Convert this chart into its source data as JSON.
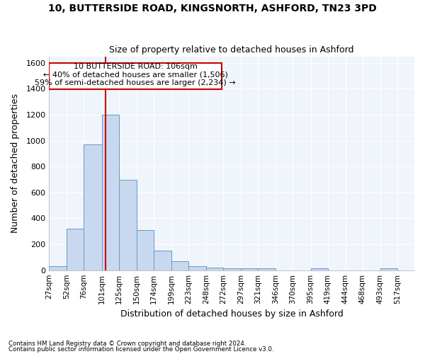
{
  "title1": "10, BUTTERSIDE ROAD, KINGSNORTH, ASHFORD, TN23 3PD",
  "title2": "Size of property relative to detached houses in Ashford",
  "xlabel": "Distribution of detached houses by size in Ashford",
  "ylabel": "Number of detached properties",
  "footnote1": "Contains HM Land Registry data © Crown copyright and database right 2024.",
  "footnote2": "Contains public sector information licensed under the Open Government Licence v3.0.",
  "annotation_line1": "10 BUTTERSIDE ROAD: 106sqm",
  "annotation_line2": "← 40% of detached houses are smaller (1,506)",
  "annotation_line3": "59% of semi-detached houses are larger (2,234) →",
  "bar_bins": [
    27,
    52,
    76,
    101,
    125,
    150,
    174,
    199,
    223,
    248,
    272,
    297,
    321,
    346,
    370,
    395,
    419,
    444,
    468,
    493,
    517
  ],
  "bar_heights": [
    30,
    320,
    970,
    1200,
    700,
    310,
    150,
    70,
    30,
    22,
    15,
    15,
    12,
    0,
    0,
    12,
    0,
    0,
    0,
    12
  ],
  "bar_color": "#c8d9ef",
  "bar_edgecolor": "#6699cc",
  "vline_x": 106,
  "vline_color": "#cc0000",
  "ylim": [
    0,
    1650
  ],
  "yticks": [
    0,
    200,
    400,
    600,
    800,
    1000,
    1200,
    1400,
    1600
  ],
  "bg_color": "#ffffff",
  "plot_bg_color": "#f0f4fb",
  "grid_color": "#ffffff",
  "annotation_box_edgecolor": "#cc0000"
}
